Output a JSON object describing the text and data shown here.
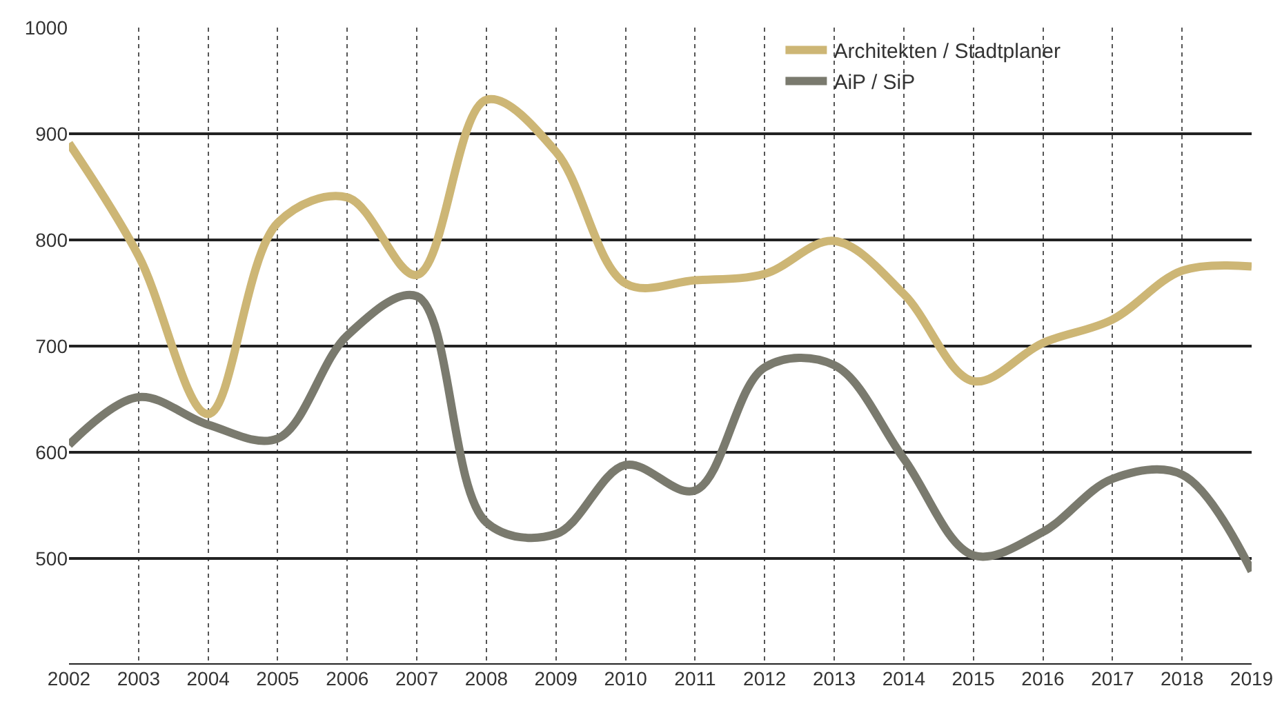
{
  "chart_data": {
    "type": "line",
    "categories": [
      "2002",
      "2003",
      "2004",
      "2005",
      "2006",
      "2007",
      "2008",
      "2009",
      "2010",
      "2011",
      "2012",
      "2013",
      "2014",
      "2015",
      "2016",
      "2017",
      "2018",
      "2019"
    ],
    "series": [
      {
        "name": "Architekten / Stadtplaner",
        "color": "#cdb675",
        "values": [
          891,
          785,
          636,
          816,
          840,
          767,
          932,
          883,
          759,
          762,
          768,
          799,
          749,
          667,
          703,
          725,
          771,
          775
        ]
      },
      {
        "name": "AiP / SiP",
        "color": "#7a7a6e",
        "values": [
          607,
          652,
          626,
          613,
          710,
          747,
          534,
          523,
          588,
          564,
          680,
          682,
          594,
          503,
          525,
          575,
          579,
          488
        ]
      }
    ],
    "ylim": [
      400,
      1000
    ],
    "yticks": [
      500,
      600,
      700,
      800,
      900,
      1000
    ],
    "grid": true,
    "legend": "top right",
    "marker": "none",
    "line_style": "solid"
  }
}
